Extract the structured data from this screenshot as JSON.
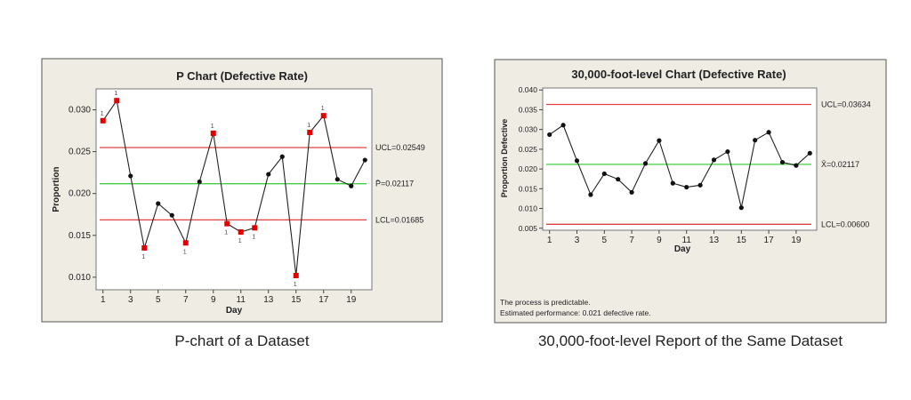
{
  "chart_data": [
    {
      "type": "line",
      "title": "P Chart (Defective Rate)",
      "xlabel": "Day",
      "ylabel": "Proportion",
      "x_ticks": [
        1,
        3,
        5,
        7,
        9,
        11,
        13,
        15,
        17,
        19
      ],
      "y_ticks": [
        "0.010",
        "0.015",
        "0.020",
        "0.025",
        "0.030"
      ],
      "ylim": [
        0.0085,
        0.0325
      ],
      "xlim": [
        0.5,
        20.5
      ],
      "x": [
        1,
        2,
        3,
        4,
        5,
        6,
        7,
        8,
        9,
        10,
        11,
        12,
        13,
        14,
        15,
        16,
        17,
        18,
        19,
        20
      ],
      "values": [
        0.0287,
        0.0311,
        0.0221,
        0.0135,
        0.0188,
        0.0174,
        0.0141,
        0.0214,
        0.0272,
        0.0164,
        0.0154,
        0.0159,
        0.0223,
        0.0244,
        0.0102,
        0.0273,
        0.0293,
        0.0217,
        0.0209,
        0.024
      ],
      "out_of_control_days": [
        1,
        2,
        4,
        7,
        9,
        10,
        11,
        12,
        15,
        16,
        17
      ],
      "out_of_control_label": "1",
      "reference_lines": [
        {
          "label": "UCL=0.02549",
          "value": 0.02549,
          "color": "#e04040"
        },
        {
          "label": "P̄=0.02117",
          "value": 0.02117,
          "color": "#40d040"
        },
        {
          "label": "LCL=0.01685",
          "value": 0.01685,
          "color": "#e04040"
        }
      ],
      "caption": "P-chart of a Dataset"
    },
    {
      "type": "line",
      "title": "30,000-foot-level Chart (Defective Rate)",
      "xlabel": "Day",
      "ylabel": "Proportion Defective",
      "x_ticks": [
        1,
        3,
        5,
        7,
        9,
        11,
        13,
        15,
        17,
        19
      ],
      "y_ticks": [
        "0.005",
        "0.010",
        "0.015",
        "0.020",
        "0.025",
        "0.030",
        "0.035",
        "0.040"
      ],
      "ylim": [
        0.0045,
        0.0405
      ],
      "xlim": [
        0.5,
        20.5
      ],
      "x": [
        1,
        2,
        3,
        4,
        5,
        6,
        7,
        8,
        9,
        10,
        11,
        12,
        13,
        14,
        15,
        16,
        17,
        18,
        19,
        20
      ],
      "values": [
        0.0287,
        0.0311,
        0.0221,
        0.0135,
        0.0188,
        0.0174,
        0.0141,
        0.0214,
        0.0272,
        0.0164,
        0.0154,
        0.0159,
        0.0223,
        0.0244,
        0.0102,
        0.0273,
        0.0293,
        0.0217,
        0.0209,
        0.024
      ],
      "reference_lines": [
        {
          "label": "UCL=0.03634",
          "value": 0.03634,
          "color": "#e04040"
        },
        {
          "label": "X̄=0.02117",
          "value": 0.02117,
          "color": "#40d040"
        },
        {
          "label": "LCL=0.00600",
          "value": 0.006,
          "color": "#e04040"
        }
      ],
      "notes": [
        "The process is predictable.",
        "Estimated performance: 0.021 defective rate."
      ],
      "caption": "30,000-foot-level Report of the Same Dataset"
    }
  ]
}
